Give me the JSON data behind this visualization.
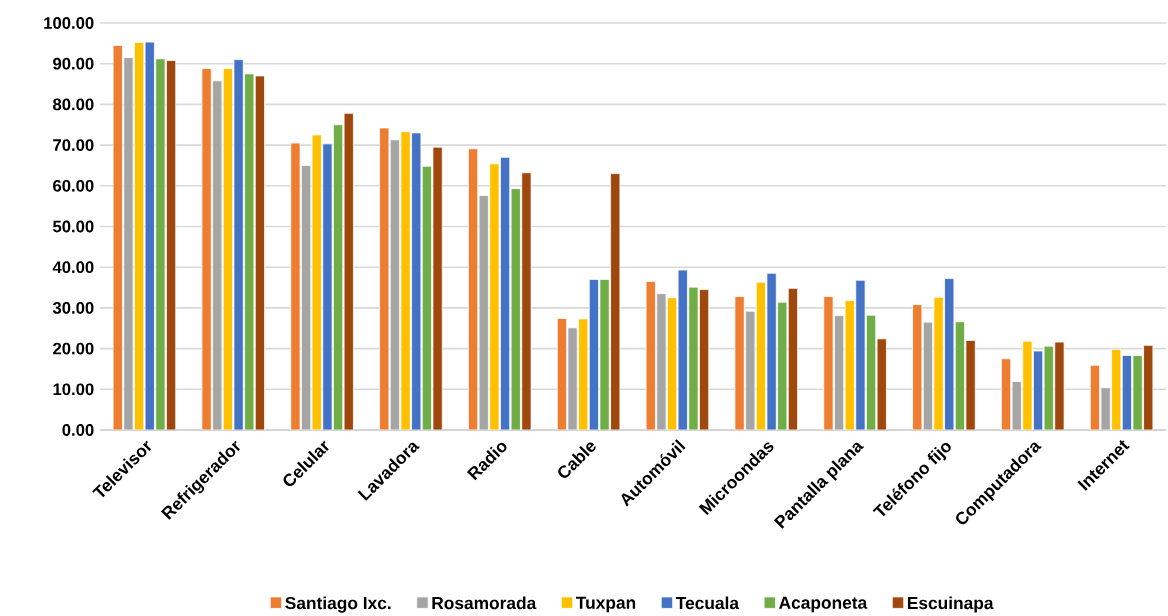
{
  "chart_data": {
    "type": "bar",
    "categories": [
      "Televisor",
      "Refrigerador",
      "Celular",
      "Lavadora",
      "Radio",
      "Cable",
      "Automóvil",
      "Microondas",
      "Pantalla plana",
      "Teléfono fijo",
      "Computadora",
      "Internet"
    ],
    "series": [
      {
        "name": "Santiago Ixc.",
        "color": "#ed7d31",
        "values": [
          94.5,
          88.8,
          70.5,
          74.2,
          69.1,
          27.4,
          36.5,
          32.8,
          32.8,
          30.8,
          17.5,
          15.9
        ]
      },
      {
        "name": "Rosamorada",
        "color": "#a5a5a5",
        "values": [
          91.5,
          85.8,
          65.0,
          71.3,
          57.6,
          25.1,
          33.5,
          29.2,
          28.1,
          26.5,
          11.9,
          10.4
        ]
      },
      {
        "name": "Tuxpan",
        "color": "#ffc000",
        "values": [
          95.2,
          88.8,
          72.5,
          73.3,
          65.4,
          27.3,
          32.5,
          36.3,
          31.8,
          32.6,
          21.8,
          19.8
        ]
      },
      {
        "name": "Tecuala",
        "color": "#4472c4",
        "values": [
          95.3,
          91.0,
          70.3,
          73.0,
          67.0,
          37.0,
          39.3,
          38.5,
          36.8,
          37.2,
          19.4,
          18.3
        ]
      },
      {
        "name": "Acaponeta",
        "color": "#70ad47",
        "values": [
          91.2,
          87.5,
          75.0,
          64.8,
          59.3,
          37.0,
          35.1,
          31.4,
          28.2,
          26.6,
          20.6,
          18.3
        ]
      },
      {
        "name": "Escuinapa",
        "color": "#9e480e",
        "values": [
          90.8,
          87.0,
          77.8,
          69.5,
          63.2,
          63.0,
          34.5,
          34.8,
          22.4,
          22.0,
          21.6,
          20.8
        ]
      }
    ],
    "ylim": [
      0,
      100
    ],
    "yticks": [
      {
        "value": 0,
        "label": "0.00"
      },
      {
        "value": 10,
        "label": "10.00"
      },
      {
        "value": 20,
        "label": "20.00"
      },
      {
        "value": 30,
        "label": "30.00"
      },
      {
        "value": 40,
        "label": "40.00"
      },
      {
        "value": 50,
        "label": "50.00"
      },
      {
        "value": 60,
        "label": "60.00"
      },
      {
        "value": 70,
        "label": "70.00"
      },
      {
        "value": 80,
        "label": "80.00"
      },
      {
        "value": 90,
        "label": "90.00"
      },
      {
        "value": 100,
        "label": "100.00"
      }
    ],
    "grid": "y",
    "legend": "bottom"
  }
}
